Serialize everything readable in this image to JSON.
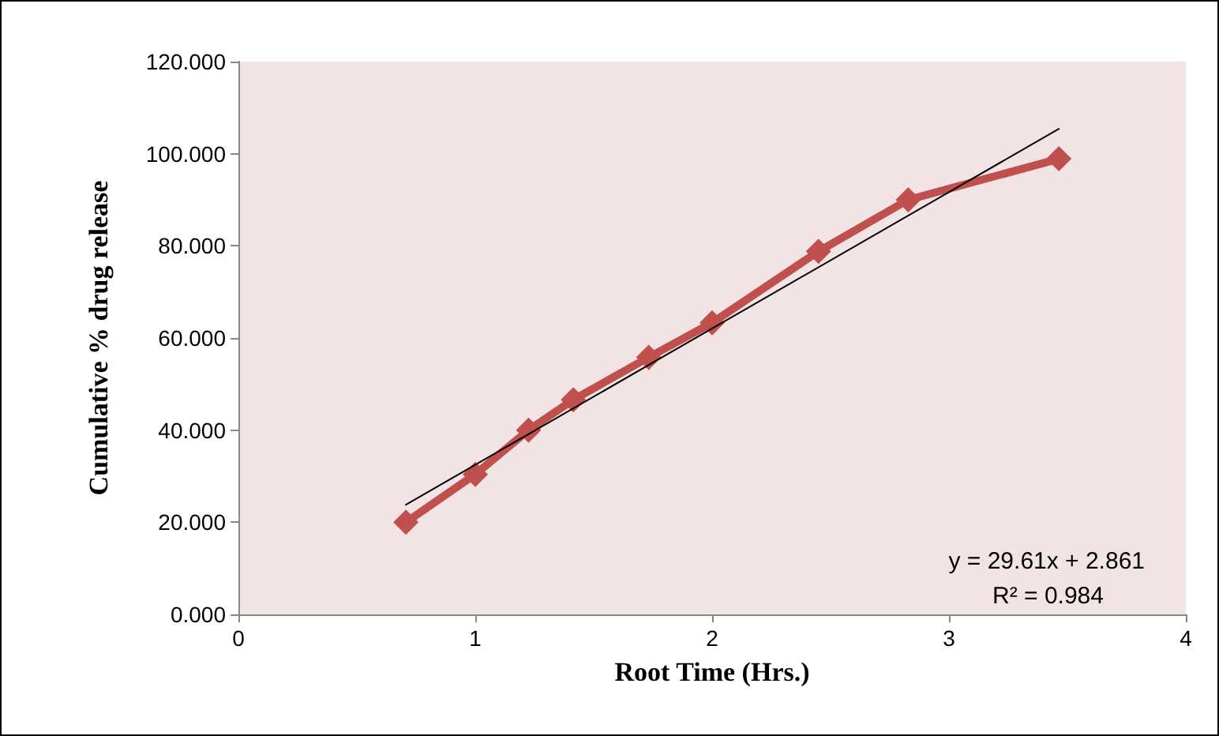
{
  "chart_data": {
    "type": "line",
    "xlabel": "Root Time (Hrs.)",
    "ylabel": "Cumulative % drug release",
    "xlim": [
      0,
      4
    ],
    "xticks": [
      0,
      1,
      2,
      3,
      4
    ],
    "ylim": [
      0,
      120
    ],
    "yticks": [
      {
        "value": 0,
        "label": "0.000"
      },
      {
        "value": 20,
        "label": "20.000"
      },
      {
        "value": 40,
        "label": "40.000"
      },
      {
        "value": 60,
        "label": "60.000"
      },
      {
        "value": 80,
        "label": "80.000"
      },
      {
        "value": 100,
        "label": "100.000"
      },
      {
        "value": 120,
        "label": "120.000"
      }
    ],
    "grid": false,
    "series": [
      {
        "color": "#c0504d",
        "marker": "diamond",
        "line_style": "solid",
        "x": [
          0.707,
          1.0,
          1.225,
          1.414,
          1.732,
          2.0,
          2.449,
          2.828,
          3.464
        ],
        "values": [
          20.0,
          30.4,
          40.0,
          46.6,
          55.8,
          63.3,
          78.8,
          90.0,
          98.9
        ]
      },
      {
        "type": "line",
        "color": "#000000",
        "marker": "none",
        "line_style": "solid",
        "x": [
          0.707,
          3.464
        ],
        "values": [
          23.8,
          105.4
        ]
      }
    ],
    "annotations": [
      "y = 29.61x + 2.861",
      "R² = 0.984"
    ]
  }
}
